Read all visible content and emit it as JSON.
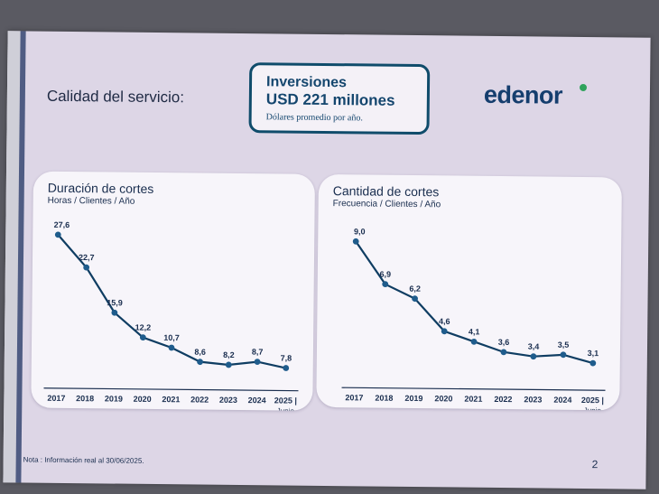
{
  "header": {
    "section_title": "Calidad del servicio:",
    "investment_title": "Inversiones",
    "investment_amount": "USD 221 millones",
    "investment_subtitle": "Dólares promedio por año.",
    "brand": "edenor"
  },
  "footer": {
    "note": "Nota : Información real al 30/06/2025.",
    "page_number": "2"
  },
  "colors": {
    "line": "#0f3d62",
    "marker": "#1f5c8c",
    "axis": "#1a2e4f",
    "brand_dot": "#2fa35c"
  },
  "chart_data": [
    {
      "type": "line",
      "title": "Duración de cortes",
      "subtitle": "Horas / Clientes / Año",
      "categories": [
        "2017",
        "2018",
        "2019",
        "2020",
        "2021",
        "2022",
        "2023",
        "2024",
        "2025 |"
      ],
      "category_note": "Junio",
      "values": [
        27.6,
        22.7,
        15.9,
        12.2,
        10.7,
        8.6,
        8.2,
        8.7,
        7.8
      ],
      "labels": [
        "27,6",
        "22,7",
        "15,9",
        "12,2",
        "10,7",
        "8,6",
        "8,2",
        "8,7",
        "7,8"
      ],
      "ylim": [
        0,
        30
      ]
    },
    {
      "type": "line",
      "title": "Cantidad de cortes",
      "subtitle": "Frecuencia / Clientes / Año",
      "categories": [
        "2017",
        "2018",
        "2019",
        "2020",
        "2021",
        "2022",
        "2023",
        "2024",
        "2025 |"
      ],
      "category_note": "Junio",
      "values": [
        9.0,
        6.9,
        6.2,
        4.6,
        4.1,
        3.6,
        3.4,
        3.5,
        3.1
      ],
      "labels": [
        "9,0",
        "6,9",
        "6,2",
        "4,6",
        "4,1",
        "3,6",
        "3,4",
        "3,5",
        "3,1"
      ],
      "ylim": [
        0,
        10
      ]
    }
  ]
}
